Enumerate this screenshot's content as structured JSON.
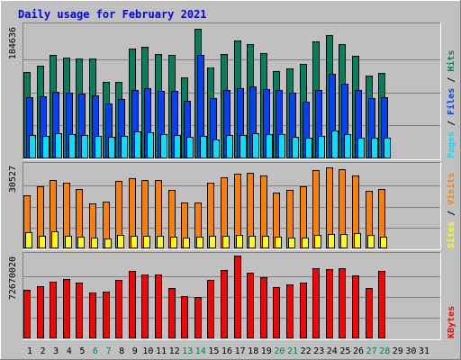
{
  "title": "Daily usage for February 2021",
  "colors": {
    "background": "#c0c0c0",
    "title": "#0000ff",
    "hits": "#00805c",
    "files": "#0040ff",
    "pages": "#00e0ff",
    "visits": "#ff8000",
    "sites": "#ffff00",
    "kbytes": "#ff0000",
    "weekday_label": "#000000",
    "weekend_label": "#00805c"
  },
  "chart_data": [
    {
      "type": "bar",
      "name": "hits-files-pages",
      "max_label": "184636",
      "ymax": 184636,
      "axis_label": [
        "Pages",
        "Files",
        "Hits"
      ],
      "series": [
        {
          "name": "Hits",
          "values": [
            120000,
            129000,
            144000,
            141000,
            140000,
            140000,
            107000,
            107000,
            153000,
            156000,
            146000,
            145000,
            113000,
            181000,
            127000,
            146000,
            164000,
            160000,
            147000,
            122000,
            126000,
            132000,
            163000,
            172000,
            160000,
            143000,
            116000,
            119000
          ]
        },
        {
          "name": "Files",
          "values": [
            85000,
            87000,
            93000,
            92000,
            91000,
            88000,
            77000,
            83000,
            96000,
            98000,
            94000,
            94000,
            80000,
            145000,
            84000,
            96000,
            98000,
            100000,
            97000,
            95000,
            92000,
            79000,
            96000,
            118000,
            104000,
            96000,
            84000,
            85000
          ]
        },
        {
          "name": "Pages",
          "values": [
            33000,
            32000,
            35000,
            34000,
            33000,
            32000,
            30000,
            31000,
            38000,
            36000,
            34000,
            33000,
            30000,
            31000,
            26000,
            33000,
            33000,
            35000,
            34000,
            34000,
            30000,
            29000,
            31000,
            39000,
            34000,
            29000,
            29000,
            29000
          ]
        }
      ]
    },
    {
      "type": "bar",
      "name": "visits-sites",
      "max_label": "30527",
      "ymax": 30527,
      "axis_label": [
        "Sites",
        "Visits"
      ],
      "series": [
        {
          "name": "Visits",
          "values": [
            19300,
            22600,
            24800,
            24000,
            21700,
            16500,
            17000,
            24500,
            25600,
            25100,
            25000,
            21400,
            16800,
            16800,
            24100,
            25800,
            27400,
            27600,
            26500,
            20300,
            21200,
            22500,
            28600,
            29400,
            29000,
            26600,
            20900,
            21700
          ]
        },
        {
          "name": "Sites",
          "values": [
            5800,
            4500,
            6400,
            4700,
            4200,
            3800,
            3500,
            4800,
            4600,
            4500,
            4500,
            4300,
            4100,
            4400,
            4500,
            4500,
            4800,
            4700,
            4500,
            4200,
            4000,
            4000,
            5000,
            5200,
            5100,
            5600,
            4800,
            4200
          ]
        }
      ]
    },
    {
      "type": "bar",
      "name": "kbytes",
      "max_label": "72670020",
      "ymax": 72670020,
      "axis_label": [
        "KBytes"
      ],
      "series": [
        {
          "name": "KBytes",
          "values": [
            43000000,
            46000000,
            50000000,
            52000000,
            49000000,
            40000000,
            41000000,
            51000000,
            59000000,
            56000000,
            56000000,
            44000000,
            37000000,
            36000000,
            51000000,
            60000000,
            72600000,
            58000000,
            54000000,
            45000000,
            47000000,
            49000000,
            62000000,
            61000000,
            62000000,
            55000000,
            44000000,
            59000000
          ]
        }
      ]
    }
  ],
  "x_axis": {
    "days": [
      "1",
      "2",
      "3",
      "4",
      "5",
      "6",
      "7",
      "8",
      "9",
      "10",
      "11",
      "12",
      "13",
      "14",
      "15",
      "16",
      "17",
      "18",
      "19",
      "20",
      "21",
      "22",
      "23",
      "24",
      "25",
      "26",
      "27",
      "28",
      "29",
      "30",
      "31"
    ],
    "weekend_days": [
      6,
      7,
      13,
      14,
      20,
      21,
      27,
      28
    ]
  }
}
